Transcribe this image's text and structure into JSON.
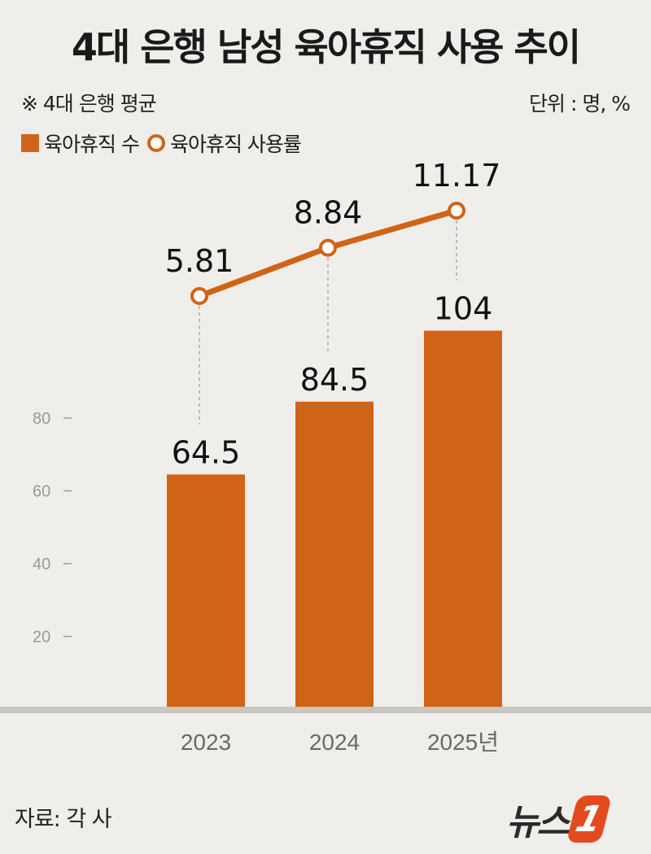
{
  "title": "4대 은행 남성 육아휴직 사용 추이",
  "note": "※ 4대 은행 평균",
  "unit": "단위 : 명, %",
  "legend": {
    "bar": "육아휴직 수",
    "line": "육아휴직 사용률"
  },
  "source": "자료: 각 사",
  "logo": {
    "text": "뉴스",
    "mark": "1"
  },
  "colors": {
    "bar": "#d06416",
    "line": "#d06416",
    "background": "#efeeea"
  },
  "chart_data": {
    "type": "bar+line",
    "categories": [
      "2023",
      "2024",
      "2025년"
    ],
    "series": [
      {
        "name": "육아휴직 수",
        "type": "bar",
        "values": [
          64.5,
          84.5,
          104
        ],
        "labels": [
          "64.5",
          "84.5",
          "104"
        ]
      },
      {
        "name": "육아휴직 사용률",
        "type": "line",
        "values": [
          5.81,
          8.84,
          11.17
        ],
        "labels": [
          "5.81",
          "8.84",
          "11.17"
        ]
      }
    ],
    "yticks": [
      20,
      40,
      60,
      80
    ],
    "ytick_labels": [
      "20",
      "40",
      "60",
      "80"
    ],
    "ylim": [
      0,
      100
    ]
  }
}
